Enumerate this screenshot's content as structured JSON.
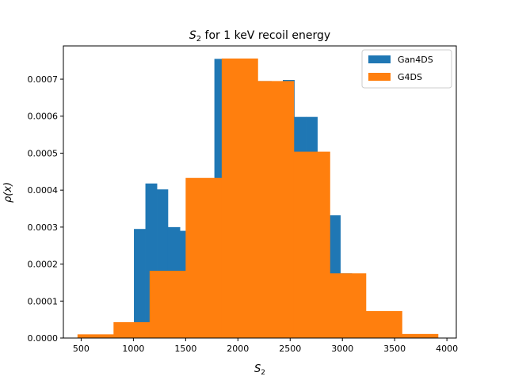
{
  "chart_data": {
    "type": "histogram",
    "title_main": "S",
    "title_sub": "2",
    "title_rest": " for 1 keV recoil energy",
    "xlabel_main": "S",
    "xlabel_sub": "2",
    "ylabel": "ρ(x)",
    "xlim": [
      330,
      4090
    ],
    "ylim": [
      0,
      0.00079
    ],
    "xticks": [
      500,
      1000,
      1500,
      2000,
      2500,
      3000,
      3500,
      4000
    ],
    "xtick_labels": [
      "500",
      "1000",
      "1500",
      "2000",
      "2500",
      "3000",
      "3500",
      "4000"
    ],
    "yticks": [
      0,
      0.0001,
      0.0002,
      0.0003,
      0.0004,
      0.0005,
      0.0006,
      0.0007
    ],
    "ytick_labels": [
      "0.0000",
      "0.0001",
      "0.0002",
      "0.0003",
      "0.0004",
      "0.0005",
      "0.0006",
      "0.0007"
    ],
    "legend_position": "top-right",
    "series": [
      {
        "name": "Gan4DS",
        "color": "#1f77b4",
        "bins": [
          [
            1005,
            1115,
            0.000295
          ],
          [
            1115,
            1225,
            0.000418
          ],
          [
            1225,
            1330,
            0.000402
          ],
          [
            1330,
            1445,
            0.0003
          ],
          [
            1445,
            1555,
            0.00029
          ],
          [
            1555,
            1665,
            0.00043
          ],
          [
            1665,
            1775,
            0.00043
          ],
          [
            1775,
            1885,
            0.000755
          ],
          [
            1885,
            1995,
            0.000755
          ],
          [
            1995,
            2100,
            0.000695
          ],
          [
            2100,
            2210,
            0.000695
          ],
          [
            2210,
            2320,
            0.000695
          ],
          [
            2320,
            2430,
            0.0006
          ],
          [
            2430,
            2540,
            0.000698
          ],
          [
            2540,
            2650,
            0.000598
          ],
          [
            2650,
            2760,
            0.000598
          ],
          [
            2760,
            2870,
            0.0005
          ],
          [
            2870,
            2980,
            0.000332
          ],
          [
            2980,
            3090,
            0.000175
          ]
        ]
      },
      {
        "name": "G4DS",
        "color": "#ff7f0e",
        "bins": [
          [
            465,
            810,
            1e-05
          ],
          [
            810,
            1155,
            4.3e-05
          ],
          [
            1155,
            1500,
            0.000182
          ],
          [
            1500,
            1845,
            0.000433
          ],
          [
            1845,
            2190,
            0.000756
          ],
          [
            2190,
            2535,
            0.000695
          ],
          [
            2535,
            2880,
            0.000504
          ],
          [
            2880,
            3225,
            0.000175
          ],
          [
            3225,
            3570,
            7.3e-05
          ],
          [
            3570,
            3915,
            1.1e-05
          ]
        ]
      }
    ]
  }
}
